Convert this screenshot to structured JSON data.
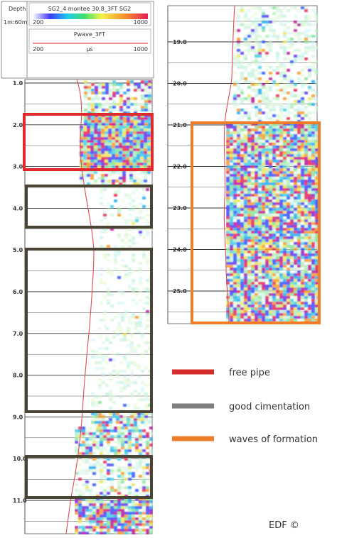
{
  "header": {
    "depth_label": "Depth",
    "unit_label": "1m:60m",
    "curve1_name": "SG2_4 montee 30,8_3FT SG2",
    "curve1_min": "200",
    "curve1_max": "1000",
    "curve2_name": "Pwave_3FT",
    "curve2_min": "200",
    "curve2_unit": "μs",
    "curve2_max": "1000"
  },
  "left_track": {
    "depth_ticks": [
      "1.0",
      "2.0",
      "3.0",
      "4.0",
      "5.0",
      "6.0",
      "7.0",
      "8.0",
      "9.0",
      "10.0",
      "11.0"
    ]
  },
  "right_track": {
    "depth_ticks": [
      "19.0",
      "20.0",
      "21.0",
      "22.0",
      "23.0",
      "24.0",
      "25.0"
    ]
  },
  "legend": {
    "items": [
      {
        "label": "free pipe",
        "color": "#d62b2b"
      },
      {
        "label": "good cimentation",
        "color": "#7d7d7d"
      },
      {
        "label": "waves of formation",
        "color": "#ee7d2a"
      }
    ]
  },
  "credit": "EDF ©",
  "colors": {
    "free_pipe_box": "#e02a2a",
    "good_cimentation_box": "#4a4434",
    "waves_formation_box": "#ee7d2a",
    "curve": "#e04a5a"
  }
}
